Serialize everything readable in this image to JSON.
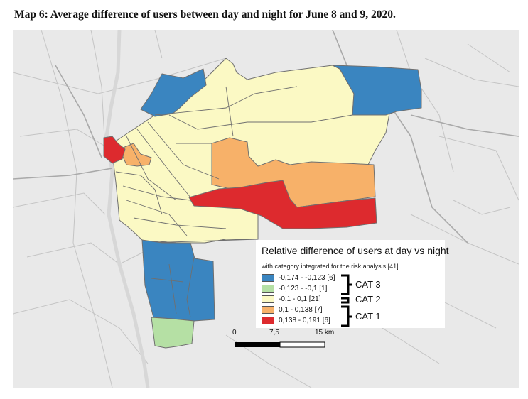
{
  "caption": "Map 6: Average difference of users between day and night for June 8 and 9, 2020.",
  "legend": {
    "title": "Relative difference of users at day vs night",
    "subtitle": "with category integrated for the risk analysis [41]",
    "items": [
      {
        "label": "-0,174 - -0,123 [6]",
        "color": "#3a85c0"
      },
      {
        "label": "-0,123 - -0,1 [1]",
        "color": "#b5e0a4"
      },
      {
        "label": "-0,1 - 0,1 [21]",
        "color": "#fbf9c4"
      },
      {
        "label": "0,1 - 0,138 [7]",
        "color": "#f7b169"
      },
      {
        "label": "0,138 - 0,191 [6]",
        "color": "#dd2a2e"
      }
    ],
    "categories": [
      "CAT 3",
      "CAT 2",
      "CAT 1"
    ]
  },
  "scale_bar": {
    "labels": [
      "0",
      "7,5",
      "15 km"
    ]
  },
  "colors": {
    "basemap": "#e9e9e9",
    "roads": "#bdbdbd",
    "boundary": "#6f6f6f"
  }
}
